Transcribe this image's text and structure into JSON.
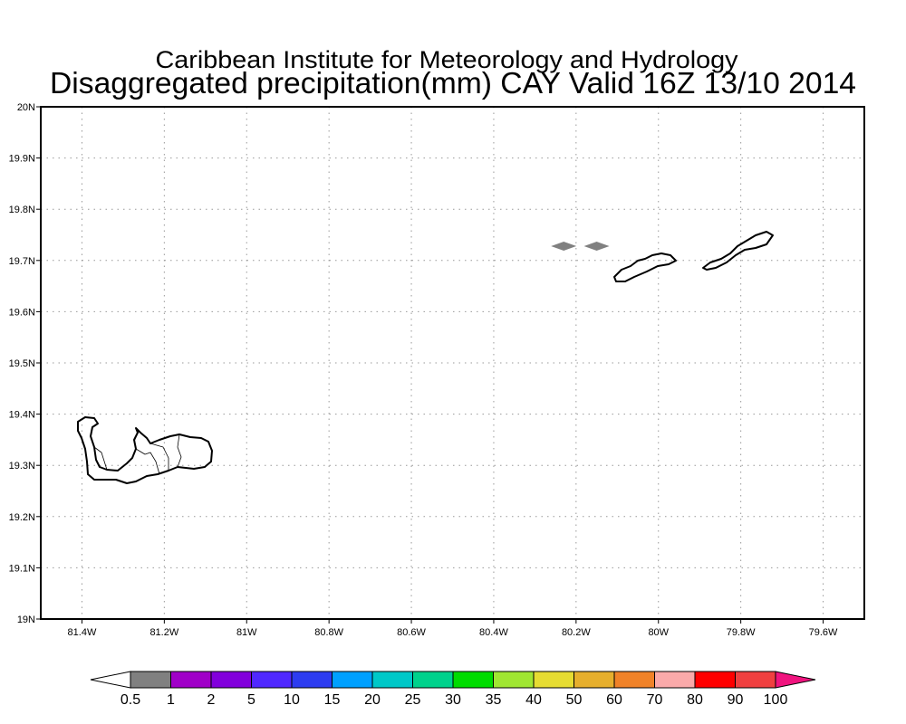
{
  "title": {
    "line1": "Caribbean Institute for Meteorology and Hydrology",
    "line2": "Disaggregated precipitation(mm) CAY Valid 16Z 13/10 2014"
  },
  "map": {
    "lon_range": [
      -81.5,
      -79.5
    ],
    "lat_range": [
      19.0,
      20.0
    ],
    "lon_ticks": [
      {
        "value": -81.4,
        "label": "81.4W"
      },
      {
        "value": -81.2,
        "label": "81.2W"
      },
      {
        "value": -81.0,
        "label": "81W"
      },
      {
        "value": -80.8,
        "label": "80.8W"
      },
      {
        "value": -80.6,
        "label": "80.6W"
      },
      {
        "value": -80.4,
        "label": "80.4W"
      },
      {
        "value": -80.2,
        "label": "80.2W"
      },
      {
        "value": -80.0,
        "label": "80W"
      },
      {
        "value": -79.8,
        "label": "79.8W"
      },
      {
        "value": -79.6,
        "label": "79.6W"
      }
    ],
    "lat_ticks": [
      {
        "value": 19.0,
        "label": "19N"
      },
      {
        "value": 19.1,
        "label": "19.1N"
      },
      {
        "value": 19.2,
        "label": "19.2N"
      },
      {
        "value": 19.3,
        "label": "19.3N"
      },
      {
        "value": 19.4,
        "label": "19.4N"
      },
      {
        "value": 19.5,
        "label": "19.5N"
      },
      {
        "value": 19.6,
        "label": "19.6N"
      },
      {
        "value": 19.7,
        "label": "19.7N"
      },
      {
        "value": 19.8,
        "label": "19.8N"
      },
      {
        "value": 19.9,
        "label": "19.9N"
      },
      {
        "value": 20.0,
        "label": "20N"
      }
    ],
    "precip_cells": [
      {
        "lon": -80.23,
        "lat": 19.728,
        "color": "#808080"
      },
      {
        "lon": -80.15,
        "lat": 19.728,
        "color": "#808080"
      }
    ]
  },
  "colorbar": {
    "low_color": "#ffffff",
    "high_color": "#f0147f",
    "colors": [
      "#808080",
      "#a000c8",
      "#8200dc",
      "#5028ff",
      "#2d3cf0",
      "#00a0ff",
      "#00c8c8",
      "#00d28c",
      "#00dc00",
      "#a0e632",
      "#e6dc32",
      "#e6af2d",
      "#f08228",
      "#faaaaa",
      "#ff0000",
      "#f04040"
    ],
    "labels": [
      "0.5",
      "1",
      "2",
      "5",
      "10",
      "15",
      "20",
      "25",
      "30",
      "35",
      "40",
      "50",
      "60",
      "70",
      "80",
      "90",
      "100"
    ]
  }
}
